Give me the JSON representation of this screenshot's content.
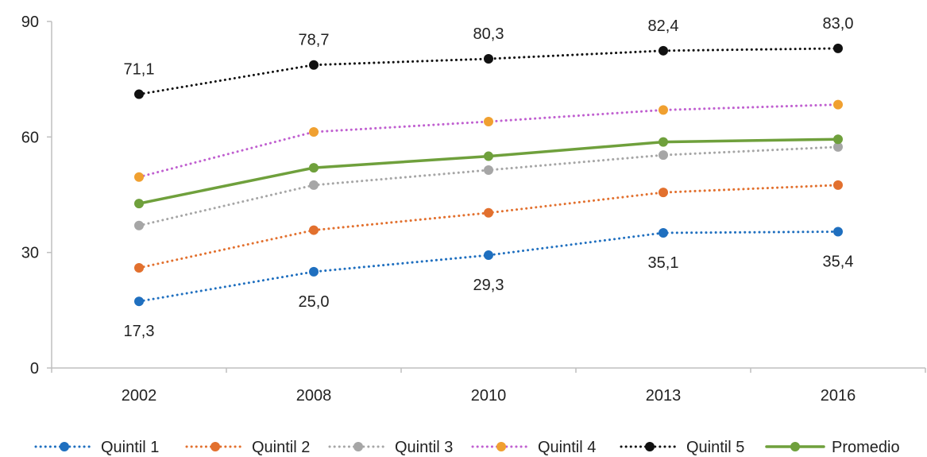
{
  "chart_data": {
    "type": "line",
    "title": "",
    "xlabel": "",
    "ylabel": "",
    "categories": [
      "2002",
      "2008",
      "2010",
      "2013",
      "2016"
    ],
    "ylim": [
      0,
      90
    ],
    "yticks": [
      0,
      30,
      60,
      90
    ],
    "grid": false,
    "legend_position": "bottom",
    "series": [
      {
        "name": "Quintil 1",
        "values": [
          17.3,
          25.0,
          29.3,
          35.1,
          35.4
        ],
        "color": "#1F6FBF",
        "style": "dotted",
        "labels": [
          "17,3",
          "25,0",
          "29,3",
          "35,1",
          "35,4"
        ],
        "label_position": "below"
      },
      {
        "name": "Quintil 2",
        "values": [
          26.0,
          35.8,
          40.3,
          45.6,
          47.5
        ],
        "color": "#E2702E",
        "style": "dotted"
      },
      {
        "name": "Quintil 3",
        "values": [
          37.0,
          47.5,
          51.4,
          55.3,
          57.4
        ],
        "color": "#A6A6A6",
        "style": "dotted"
      },
      {
        "name": "Quintil 4",
        "values": [
          49.6,
          61.3,
          64.0,
          67.0,
          68.4
        ],
        "color": "#C060D0",
        "style": "dotted",
        "marker_color": "#F0A030"
      },
      {
        "name": "Quintil 5",
        "values": [
          71.1,
          78.7,
          80.3,
          82.4,
          83.0
        ],
        "color": "#111111",
        "style": "dotted",
        "labels": [
          "71,1",
          "78,7",
          "80,3",
          "82,4",
          "83,0"
        ],
        "label_position": "above"
      },
      {
        "name": "Promedio",
        "values": [
          42.7,
          52.0,
          55.0,
          58.7,
          59.4
        ],
        "color": "#6FA03C",
        "style": "solid"
      }
    ]
  }
}
